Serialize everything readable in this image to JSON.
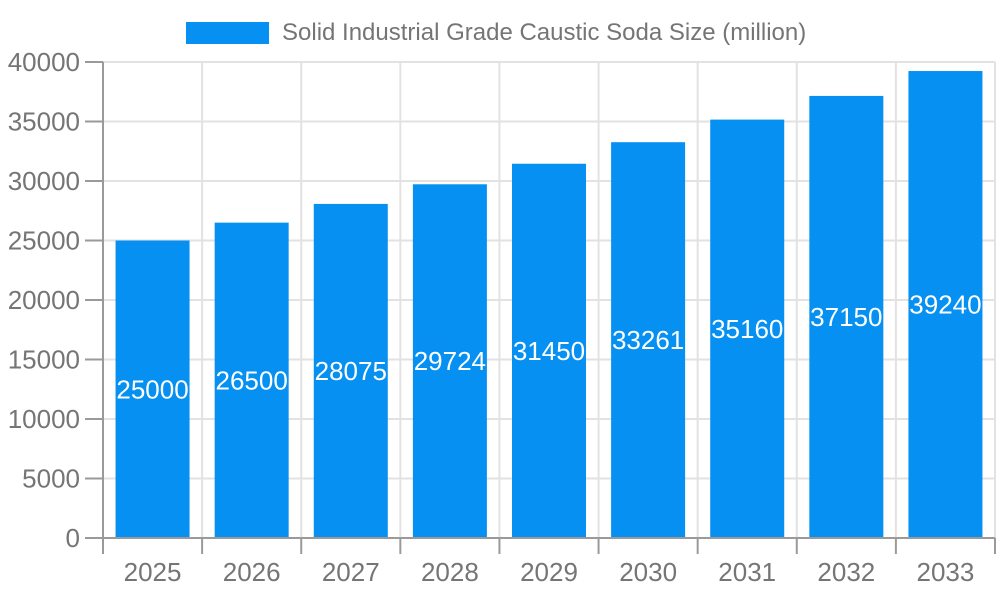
{
  "legend": {
    "label": "Solid Industrial Grade Caustic Soda Size (million)"
  },
  "chart_data": {
    "type": "bar",
    "title": "Solid Industrial Grade Caustic Soda Size (million)",
    "categories": [
      "2025",
      "2026",
      "2027",
      "2028",
      "2029",
      "2030",
      "2031",
      "2032",
      "2033"
    ],
    "series": [
      {
        "name": "Solid Industrial Grade Caustic Soda Size (million)",
        "values": [
          25000,
          26500,
          28075,
          29724,
          31450,
          33261,
          35160,
          37150,
          39240
        ]
      }
    ],
    "bar_value_labels": [
      "25000",
      "26500",
      "28075",
      "29724",
      "31450",
      "33261",
      "35160",
      "37150",
      "39240"
    ],
    "xlabel": "",
    "ylabel": "",
    "ylim": [
      0,
      40000
    ],
    "ytick_step": 5000,
    "yticks": [
      0,
      5000,
      10000,
      15000,
      20000,
      25000,
      30000,
      35000,
      40000
    ],
    "grid": true,
    "legend_position": "top",
    "value_label_position": "inside-center",
    "style": {
      "bar_color": "#0590F2",
      "bar_label_color": "#ffffff",
      "grid_color": "#E2E2E2",
      "axis_color": "#9A9A9A",
      "tick_label_color": "#757575",
      "legend_text_color": "#757575",
      "background_color": "#ffffff"
    }
  }
}
